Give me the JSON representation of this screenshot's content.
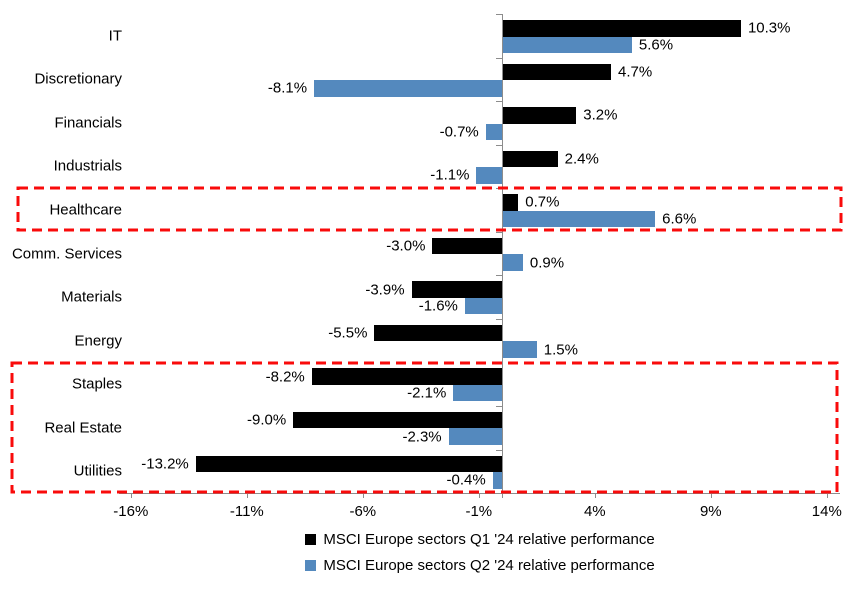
{
  "chart_data": {
    "type": "bar",
    "orientation": "horizontal",
    "title": "",
    "categories": [
      "IT",
      "Discretionary",
      "Financials",
      "Industrials",
      "Healthcare",
      "Comm. Services",
      "Materials",
      "Energy",
      "Staples",
      "Real Estate",
      "Utilities"
    ],
    "series": [
      {
        "name": "MSCI Europe sectors Q1 '24 relative performance",
        "color": "#000000",
        "values": [
          10.3,
          4.7,
          3.2,
          2.4,
          0.7,
          -3.0,
          -3.9,
          -5.5,
          -8.2,
          -9.0,
          -13.2
        ]
      },
      {
        "name": "MSCI Europe sectors Q2 '24 relative performance",
        "color": "#5489BE",
        "values": [
          5.6,
          -8.1,
          -0.7,
          -1.1,
          6.6,
          0.9,
          -1.6,
          1.5,
          -2.1,
          -2.3,
          -0.4
        ]
      }
    ],
    "data_labels": {
      "format": "one-decimal-percent",
      "q1_labels": [
        "10.3%",
        "4.7%",
        "3.2%",
        "2.4%",
        "0.7%",
        "-3.0%",
        "-3.9%",
        "-5.5%",
        "-8.2%",
        "-9.0%",
        "-13.2%"
      ],
      "q2_labels": [
        "5.6%",
        "-8.1%",
        "-0.7%",
        "-1.1%",
        "6.6%",
        "0.9%",
        "-1.6%",
        "1.5%",
        "-2.1%",
        "-2.3%",
        "-0.4%"
      ]
    },
    "x_axis": {
      "tick_labels": [
        "-16%",
        "-11%",
        "-6%",
        "-1%",
        "4%",
        "9%",
        "14%"
      ],
      "tick_values": [
        -16,
        -11,
        -6,
        -1,
        4,
        9,
        14
      ],
      "min": -16,
      "max": 14,
      "unit": "%"
    },
    "grid": false,
    "legend_position": "bottom",
    "axis_color": "#8c8c8c",
    "highlight_color": "#f90b0b",
    "highlights": [
      {
        "categories": [
          "Healthcare"
        ],
        "style": "dashed"
      },
      {
        "categories": [
          "Staples",
          "Real Estate",
          "Utilities"
        ],
        "style": "dashed"
      }
    ]
  }
}
